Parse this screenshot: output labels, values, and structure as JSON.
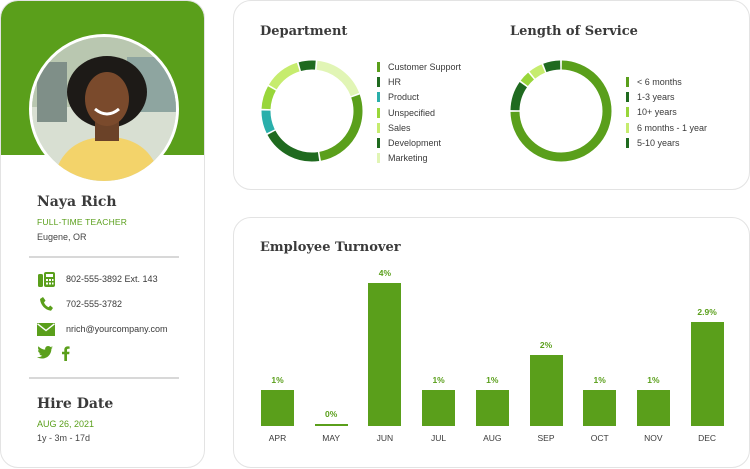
{
  "profile": {
    "name": "Naya Rich",
    "role": "FULL-TIME TEACHER",
    "location": "Eugene, OR",
    "contacts": [
      {
        "icon": "fax-phone-icon",
        "text": "802-555-3892 Ext. 143"
      },
      {
        "icon": "phone-icon",
        "text": "702-555-3782"
      },
      {
        "icon": "mail-icon",
        "text": "nrich@yourcompany.com"
      }
    ],
    "socials": [
      "twitter-icon",
      "facebook-icon"
    ],
    "hire_title": "Hire Date",
    "hire_date": "AUG 26, 2021",
    "tenure": "1y - 3m - 17d"
  },
  "colors": {
    "accent": "#5a9f1b",
    "dark_green": "#1f6a1f",
    "teal": "#2aafab",
    "light_green": "#c6ec6e",
    "pale_green": "#e1f5b5"
  },
  "department": {
    "title": "Department",
    "items": [
      {
        "label": "Customer Support",
        "color": "#5a9f1b"
      },
      {
        "label": "HR",
        "color": "#1f6a1f"
      },
      {
        "label": "Product",
        "color": "#2aafab"
      },
      {
        "label": "Unspecified",
        "color": "#98d63a"
      },
      {
        "label": "Sales",
        "color": "#c6ec6e"
      },
      {
        "label": "Development",
        "color": "#1f6a1f"
      },
      {
        "label": "Marketing",
        "color": "#e1f5b5"
      }
    ]
  },
  "service": {
    "title": "Length of Service",
    "items": [
      {
        "label": "< 6 months",
        "color": "#5a9f1b"
      },
      {
        "label": "1-3 years",
        "color": "#1f6a1f"
      },
      {
        "label": "10+ years",
        "color": "#98d63a"
      },
      {
        "label": "6 months - 1 year",
        "color": "#c6ec6e"
      },
      {
        "label": "5-10 years",
        "color": "#1f6a1f"
      }
    ]
  },
  "turnover": {
    "title": "Employee Turnover"
  },
  "chart_data": [
    {
      "type": "pie",
      "title": "Department",
      "categories": [
        "Customer Support",
        "HR",
        "Product",
        "Unspecified",
        "Sales",
        "Development",
        "Marketing"
      ],
      "values": [
        28,
        20,
        8,
        8,
        12,
        6,
        18
      ]
    },
    {
      "type": "pie",
      "title": "Length of Service",
      "categories": [
        "< 6 months",
        "1-3 years",
        "10+ years",
        "6 months - 1 year",
        "5-10 years"
      ],
      "values": [
        75,
        10,
        4,
        5,
        6
      ]
    },
    {
      "type": "bar",
      "title": "Employee Turnover",
      "categories": [
        "APR",
        "MAY",
        "JUN",
        "JUL",
        "AUG",
        "SEP",
        "OCT",
        "NOV",
        "DEC"
      ],
      "values": [
        1,
        0,
        4,
        1,
        1,
        2,
        1,
        1,
        2.9
      ],
      "labels": [
        "1%",
        "0%",
        "4%",
        "1%",
        "1%",
        "2%",
        "1%",
        "1%",
        "2.9%"
      ],
      "ylim": [
        0,
        4
      ]
    }
  ]
}
